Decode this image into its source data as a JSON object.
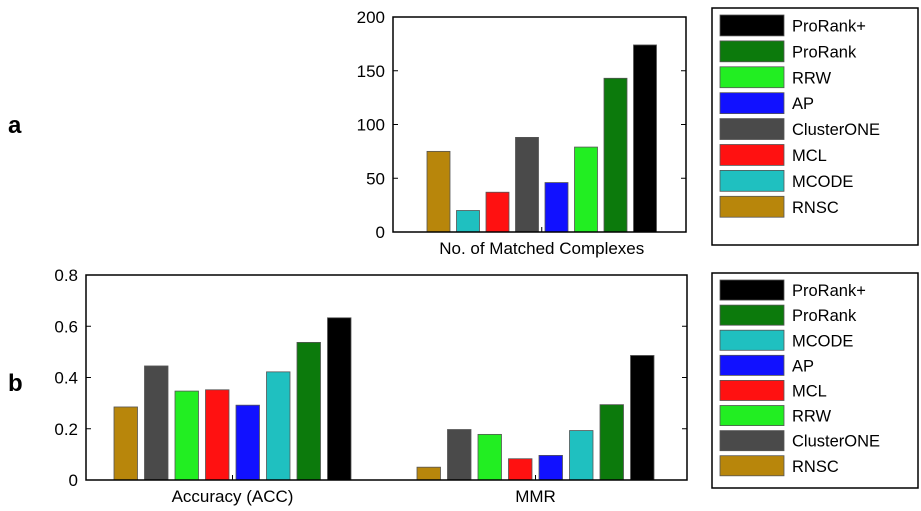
{
  "chart_data": [
    {
      "panel_label": "a",
      "type": "bar",
      "ylim": [
        0,
        200
      ],
      "yticks": [
        "0",
        "50",
        "100",
        "150",
        "200"
      ],
      "categories": [
        "No. of Matched Complexes"
      ],
      "series": [
        {
          "name": "RNSC",
          "color": "#b8860b",
          "values": [
            75
          ]
        },
        {
          "name": "MCODE",
          "color": "#1fc0c0",
          "values": [
            20
          ]
        },
        {
          "name": "MCL",
          "color": "#ff1111",
          "values": [
            37
          ]
        },
        {
          "name": "ClusterONE",
          "color": "#4a4a4a",
          "values": [
            88
          ]
        },
        {
          "name": "AP",
          "color": "#1111ff",
          "values": [
            46
          ]
        },
        {
          "name": "RRW",
          "color": "#22ee22",
          "values": [
            79
          ]
        },
        {
          "name": "ProRank",
          "color": "#0c7a0c",
          "values": [
            143
          ]
        },
        {
          "name": "ProRank+",
          "color": "#000000",
          "values": [
            174
          ]
        }
      ],
      "legend": [
        "ProRank+",
        "ProRank",
        "RRW",
        "AP",
        "ClusterONE",
        "MCL",
        "MCODE",
        "RNSC"
      ],
      "grid": false,
      "legend_position": "right"
    },
    {
      "panel_label": "b",
      "type": "bar",
      "ylim": [
        0,
        0.8
      ],
      "yticks": [
        "0",
        "0.2",
        "0.4",
        "0.6",
        "0.8"
      ],
      "categories": [
        "Accuracy (ACC)",
        "MMR"
      ],
      "series": [
        {
          "name": "RNSC",
          "color": "#b8860b",
          "values": [
            0.285,
            0.05
          ]
        },
        {
          "name": "ClusterONE",
          "color": "#4a4a4a",
          "values": [
            0.445,
            0.197
          ]
        },
        {
          "name": "RRW",
          "color": "#22ee22",
          "values": [
            0.347,
            0.178
          ]
        },
        {
          "name": "MCL",
          "color": "#ff1111",
          "values": [
            0.352,
            0.083
          ]
        },
        {
          "name": "AP",
          "color": "#1111ff",
          "values": [
            0.292,
            0.096
          ]
        },
        {
          "name": "MCODE",
          "color": "#1fc0c0",
          "values": [
            0.422,
            0.193
          ]
        },
        {
          "name": "ProRank",
          "color": "#0c7a0c",
          "values": [
            0.537,
            0.294
          ]
        },
        {
          "name": "ProRank+",
          "color": "#000000",
          "values": [
            0.633,
            0.486
          ]
        }
      ],
      "legend": [
        "ProRank+",
        "ProRank",
        "MCODE",
        "AP",
        "MCL",
        "RRW",
        "ClusterONE",
        "RNSC"
      ],
      "grid": false,
      "legend_position": "right"
    }
  ]
}
